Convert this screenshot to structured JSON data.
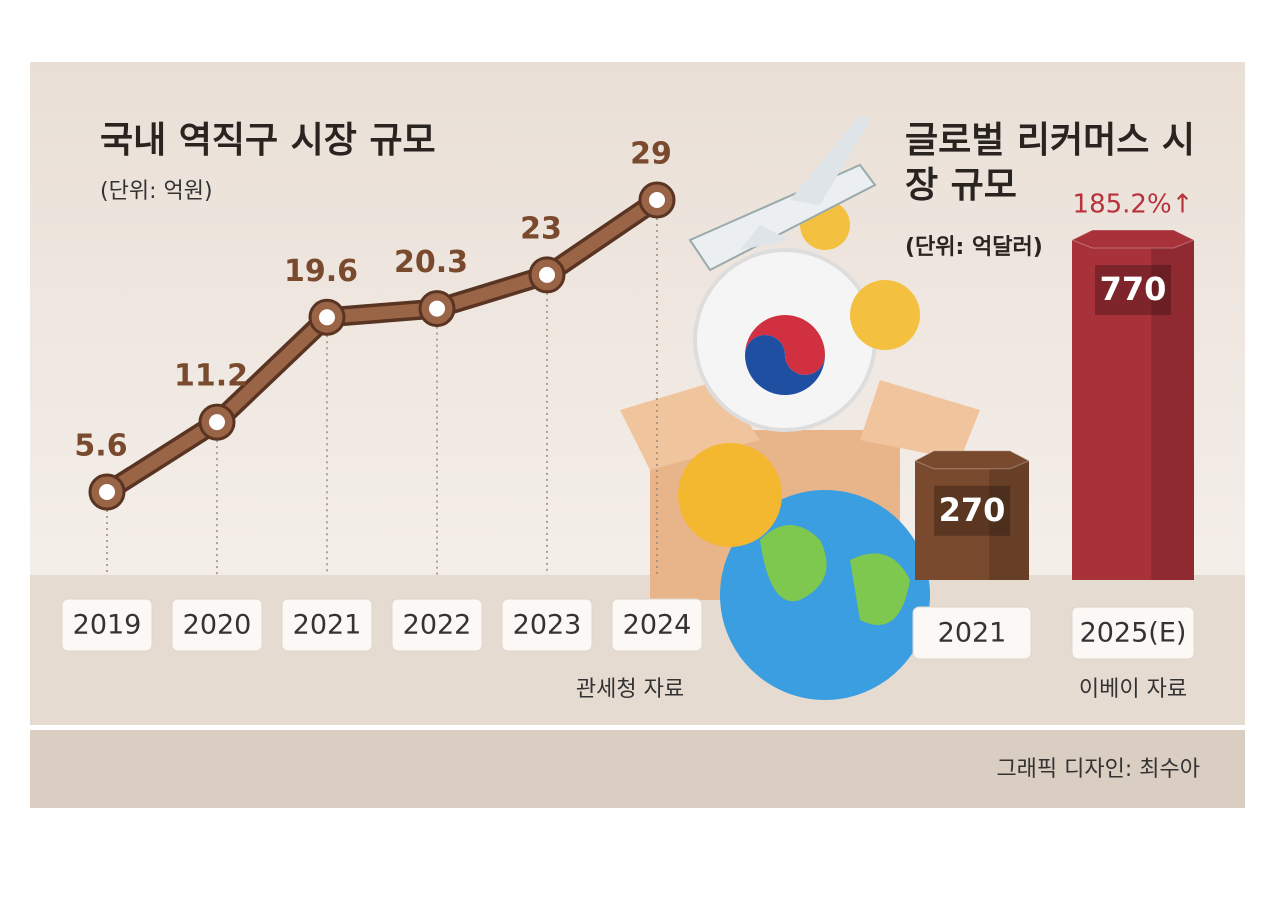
{
  "chart_data": [
    {
      "type": "line",
      "title": "국내 역직구 시장 규모",
      "subtitle": "(단위: 억원)",
      "categories": [
        "2019",
        "2020",
        "2021",
        "2022",
        "2023",
        "2024"
      ],
      "values": [
        5.6,
        11.2,
        19.6,
        20.3,
        23,
        29
      ],
      "color": "#9a6446",
      "source": "관세청 자료"
    },
    {
      "type": "bar",
      "title": "글로벌 리커머스 시장 규모",
      "subtitle": "(단위: 억달러)",
      "categories": [
        "2021",
        "2025(E)"
      ],
      "values": [
        270,
        770
      ],
      "colors": [
        "#7a4a2e",
        "#a8323a"
      ],
      "annotation": "185.2%↑",
      "source": "이베이 자료"
    }
  ],
  "credit": "그래픽 디자인: 최수아"
}
